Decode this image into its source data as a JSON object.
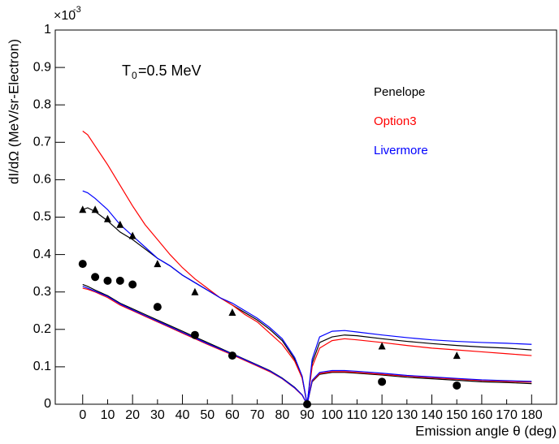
{
  "chart_data": {
    "type": "line",
    "axis_multiplier": "×10",
    "axis_exponent": "-3",
    "annotation": {
      "symbol": "T",
      "subscript": "0",
      "text": "=0.5 MeV"
    },
    "ylabel": "dI/dΩ (MeV/sr-Electron)",
    "xlabel": "Emission angle θ (deg)",
    "xlim": [
      -11,
      190
    ],
    "xticks": [
      0,
      10,
      20,
      30,
      40,
      50,
      60,
      70,
      80,
      90,
      100,
      110,
      120,
      130,
      140,
      150,
      160,
      170,
      180
    ],
    "ylim": [
      0,
      1
    ],
    "yticks": [
      0,
      0.1,
      0.2,
      0.3,
      0.4,
      0.5,
      0.6,
      0.7,
      0.8,
      0.9,
      1
    ],
    "x": [
      0,
      2,
      5,
      10,
      15,
      20,
      25,
      30,
      35,
      40,
      45,
      50,
      55,
      60,
      65,
      70,
      75,
      80,
      85,
      88,
      90,
      92,
      95,
      100,
      105,
      110,
      120,
      130,
      140,
      150,
      160,
      170,
      180
    ],
    "series": [
      {
        "name": "Penelope",
        "color": "#000000",
        "values": [
          0.52,
          0.525,
          0.515,
          0.49,
          0.46,
          0.44,
          0.415,
          0.39,
          0.37,
          0.345,
          0.325,
          0.305,
          0.285,
          0.265,
          0.245,
          0.225,
          0.2,
          0.17,
          0.12,
          0.07,
          0,
          0.11,
          0.165,
          0.18,
          0.185,
          0.183,
          0.175,
          0.168,
          0.162,
          0.157,
          0.153,
          0.15,
          0.145
        ],
        "values_2": [
          0.32,
          0.315,
          0.305,
          0.29,
          0.27,
          0.255,
          0.24,
          0.225,
          0.21,
          0.195,
          0.18,
          0.165,
          0.15,
          0.135,
          0.12,
          0.105,
          0.09,
          0.07,
          0.045,
          0.025,
          0,
          0.06,
          0.08,
          0.085,
          0.085,
          0.083,
          0.078,
          0.072,
          0.068,
          0.064,
          0.06,
          0.058,
          0.055
        ]
      },
      {
        "name": "Option3",
        "color": "#ff0000",
        "values": [
          0.73,
          0.72,
          0.69,
          0.64,
          0.585,
          0.53,
          0.48,
          0.44,
          0.4,
          0.365,
          0.335,
          0.31,
          0.285,
          0.265,
          0.24,
          0.22,
          0.19,
          0.16,
          0.115,
          0.07,
          0,
          0.1,
          0.15,
          0.17,
          0.175,
          0.172,
          0.165,
          0.157,
          0.15,
          0.145,
          0.14,
          0.135,
          0.13
        ],
        "values_2": [
          0.31,
          0.307,
          0.3,
          0.285,
          0.265,
          0.25,
          0.235,
          0.22,
          0.205,
          0.19,
          0.175,
          0.16,
          0.146,
          0.132,
          0.117,
          0.102,
          0.087,
          0.068,
          0.043,
          0.024,
          0,
          0.062,
          0.082,
          0.087,
          0.087,
          0.085,
          0.08,
          0.075,
          0.071,
          0.067,
          0.063,
          0.061,
          0.059
        ]
      },
      {
        "name": "Livermore",
        "color": "#0000ff",
        "values": [
          0.57,
          0.565,
          0.55,
          0.52,
          0.48,
          0.45,
          0.42,
          0.39,
          0.37,
          0.345,
          0.325,
          0.305,
          0.285,
          0.27,
          0.25,
          0.23,
          0.205,
          0.175,
          0.125,
          0.075,
          0,
          0.12,
          0.18,
          0.195,
          0.197,
          0.193,
          0.185,
          0.178,
          0.172,
          0.168,
          0.165,
          0.163,
          0.16
        ],
        "values_2": [
          0.315,
          0.31,
          0.302,
          0.288,
          0.268,
          0.252,
          0.237,
          0.222,
          0.207,
          0.192,
          0.177,
          0.162,
          0.148,
          0.134,
          0.119,
          0.104,
          0.089,
          0.069,
          0.044,
          0.025,
          0,
          0.064,
          0.085,
          0.09,
          0.09,
          0.088,
          0.083,
          0.077,
          0.073,
          0.069,
          0.065,
          0.063,
          0.061
        ]
      }
    ],
    "markers": [
      {
        "shape": "triangle",
        "color": "#000000",
        "x": [
          0,
          5,
          10,
          15,
          20,
          30,
          45,
          60,
          120,
          150
        ],
        "values": [
          0.52,
          0.52,
          0.495,
          0.48,
          0.45,
          0.375,
          0.3,
          0.245,
          0.155,
          0.13
        ]
      },
      {
        "shape": "circle",
        "color": "#000000",
        "x": [
          0,
          5,
          10,
          15,
          20,
          30,
          45,
          60,
          90,
          120,
          150
        ],
        "values": [
          0.375,
          0.34,
          0.33,
          0.33,
          0.32,
          0.26,
          0.185,
          0.13,
          0,
          0.06,
          0.05
        ]
      }
    ]
  }
}
